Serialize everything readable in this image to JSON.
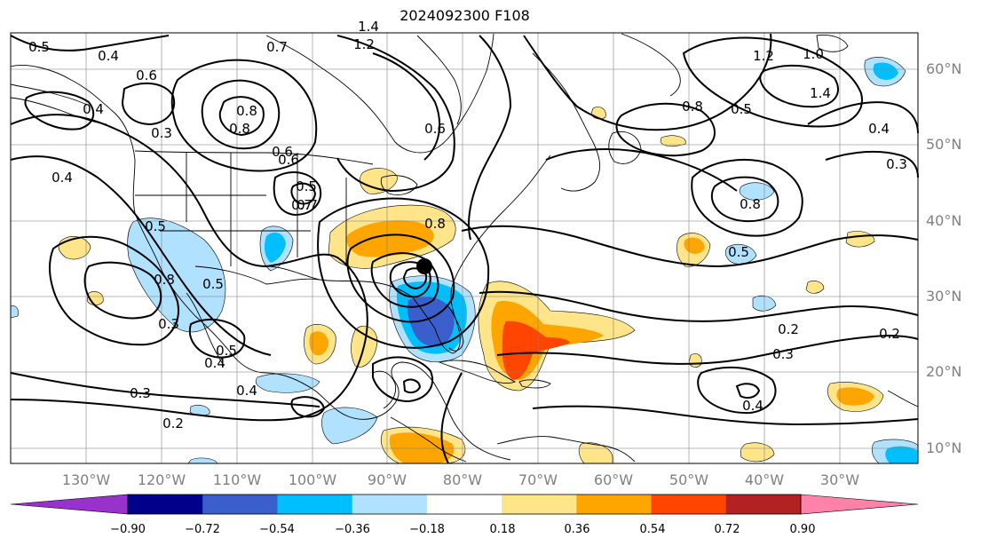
{
  "title": "2024092300 F108",
  "longitude_labels": [
    "130°W",
    "120°W",
    "110°W",
    "100°W",
    "90°W",
    "80°W",
    "70°W",
    "60°W",
    "50°W",
    "40°W",
    "30°W"
  ],
  "latitude_labels": [
    "60°N",
    "50°N",
    "40°N",
    "30°N",
    "20°N",
    "10°N"
  ],
  "colorbar": {
    "tick_labels": [
      "−0.90",
      "−0.72",
      "−0.54",
      "−0.36",
      "−0.18",
      "0.18",
      "0.36",
      "0.54",
      "0.72",
      "0.90"
    ],
    "colors": [
      "#9932cc",
      "#00008b",
      "#3a5fcd",
      "#00bfff",
      "#b0e2ff",
      "#ffffff",
      "#ffe58a",
      "#ffa500",
      "#ff4500",
      "#b22222",
      "#ff82ab"
    ]
  },
  "contour_labels": [
    "0.5",
    "0.4",
    "0.6",
    "0.7",
    "1.2",
    "1.4",
    "0.8",
    "0.4",
    "0.3",
    "0.4",
    "0.5",
    "0.7",
    "0.6",
    "0.8",
    "0.8",
    "0.5",
    "0.4",
    "0.3",
    "0.2",
    "0.3",
    "0.4",
    "0.5",
    "0.8",
    "0.7",
    "0.5",
    "0.6",
    "0.5",
    "0.2",
    "0.3",
    "0.4",
    "0.2",
    "0.8",
    "1.0",
    "1.4",
    "1.2",
    "0.6",
    "0.4",
    "0.3",
    "0.5",
    "0.8"
  ],
  "colors": {
    "ocean": "#ffffff",
    "contour": "#000000",
    "grid": "#808080",
    "storm_marker": "#000000"
  }
}
